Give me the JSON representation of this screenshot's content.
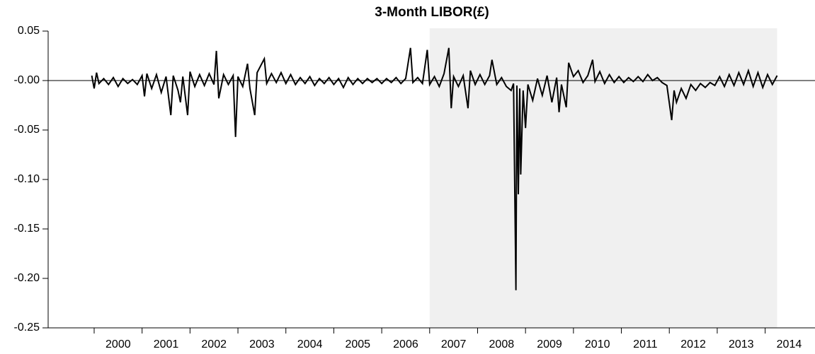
{
  "chart_data": {
    "type": "line",
    "title": "3-Month LIBOR(£)",
    "xlim": [
      1999.04,
      2015.04
    ],
    "ylim": [
      -0.25,
      0.05
    ],
    "xticks": [
      2000,
      2001,
      2002,
      2003,
      2004,
      2005,
      2006,
      2007,
      2008,
      2009,
      2010,
      2011,
      2012,
      2013,
      2014
    ],
    "yticks": [
      {
        "value": 0.05,
        "label": "0.05"
      },
      {
        "value": 0,
        "label": "-0.00"
      },
      {
        "value": -0.05,
        "label": "-0.05"
      },
      {
        "value": -0.1,
        "label": "-0.10"
      },
      {
        "value": -0.15,
        "label": "-0.15"
      },
      {
        "value": -0.2,
        "label": "-0.20"
      },
      {
        "value": -0.25,
        "label": "-0.25"
      }
    ],
    "shaded_range": [
      2007.0,
      2014.25
    ],
    "shade_color": "#f0f0f0",
    "series": [
      {
        "color": "#000000",
        "x": [
          1999.95,
          2000.0,
          2000.05,
          2000.1,
          2000.2,
          2000.3,
          2000.4,
          2000.5,
          2000.6,
          2000.7,
          2000.8,
          2000.9,
          2001.0,
          2001.05,
          2001.1,
          2001.2,
          2001.3,
          2001.4,
          2001.5,
          2001.6,
          2001.65,
          2001.75,
          2001.8,
          2001.85,
          2001.95,
          2002.0,
          2002.1,
          2002.2,
          2002.3,
          2002.4,
          2002.5,
          2002.55,
          2002.6,
          2002.7,
          2002.8,
          2002.9,
          2002.95,
          2003.0,
          2003.1,
          2003.2,
          2003.25,
          2003.35,
          2003.4,
          2003.55,
          2003.6,
          2003.7,
          2003.8,
          2003.9,
          2004.0,
          2004.1,
          2004.2,
          2004.3,
          2004.4,
          2004.5,
          2004.6,
          2004.7,
          2004.8,
          2004.9,
          2005.0,
          2005.1,
          2005.2,
          2005.3,
          2005.4,
          2005.5,
          2005.6,
          2005.7,
          2005.8,
          2005.9,
          2006.0,
          2006.1,
          2006.2,
          2006.3,
          2006.4,
          2006.5,
          2006.6,
          2006.65,
          2006.75,
          2006.85,
          2006.95,
          2007.0,
          2007.1,
          2007.2,
          2007.3,
          2007.4,
          2007.45,
          2007.5,
          2007.6,
          2007.7,
          2007.8,
          2007.85,
          2007.95,
          2008.05,
          2008.15,
          2008.25,
          2008.3,
          2008.4,
          2008.5,
          2008.6,
          2008.7,
          2008.75,
          2008.8,
          2008.82,
          2008.85,
          2008.88,
          2008.9,
          2008.95,
          2009.0,
          2009.05,
          2009.15,
          2009.25,
          2009.35,
          2009.45,
          2009.55,
          2009.65,
          2009.7,
          2009.75,
          2009.85,
          2009.9,
          2010.0,
          2010.1,
          2010.2,
          2010.3,
          2010.4,
          2010.45,
          2010.55,
          2010.65,
          2010.75,
          2010.85,
          2010.95,
          2011.05,
          2011.15,
          2011.25,
          2011.35,
          2011.45,
          2011.55,
          2011.65,
          2011.75,
          2011.85,
          2011.95,
          2012.05,
          2012.1,
          2012.15,
          2012.25,
          2012.35,
          2012.45,
          2012.55,
          2012.65,
          2012.75,
          2012.85,
          2012.95,
          2013.05,
          2013.15,
          2013.25,
          2013.35,
          2013.45,
          2013.55,
          2013.65,
          2013.75,
          2013.85,
          2013.95,
          2014.05,
          2014.15,
          2014.25
        ],
        "values": [
          0.005,
          -0.008,
          0.008,
          -0.003,
          0.002,
          -0.004,
          0.003,
          -0.006,
          0.002,
          -0.003,
          0.001,
          -0.004,
          0.005,
          -0.016,
          0.007,
          -0.008,
          0.006,
          -0.012,
          0.004,
          -0.035,
          0.005,
          -0.01,
          -0.022,
          0.004,
          -0.035,
          0.009,
          -0.006,
          0.006,
          -0.005,
          0.007,
          -0.004,
          0.03,
          -0.018,
          0.006,
          -0.004,
          0.005,
          -0.057,
          0.004,
          -0.006,
          0.017,
          -0.008,
          -0.035,
          0.008,
          0.022,
          -0.003,
          0.007,
          -0.002,
          0.008,
          -0.003,
          0.006,
          -0.004,
          0.003,
          -0.003,
          0.004,
          -0.005,
          0.002,
          -0.003,
          0.003,
          -0.004,
          0.002,
          -0.007,
          0.003,
          -0.004,
          0.002,
          -0.003,
          0.002,
          -0.002,
          0.002,
          -0.003,
          0.002,
          -0.002,
          0.003,
          -0.003,
          0.002,
          0.033,
          -0.002,
          0.003,
          -0.003,
          0.031,
          -0.004,
          0.004,
          -0.006,
          0.007,
          0.033,
          -0.028,
          0.004,
          -0.006,
          0.005,
          -0.028,
          0.01,
          -0.004,
          0.006,
          -0.004,
          0.005,
          0.021,
          -0.004,
          0.003,
          -0.006,
          -0.01,
          -0.003,
          -0.212,
          -0.005,
          -0.115,
          -0.008,
          -0.095,
          -0.01,
          -0.048,
          -0.004,
          -0.02,
          0.002,
          -0.015,
          0.005,
          -0.022,
          0.003,
          -0.032,
          -0.004,
          -0.027,
          0.018,
          0.004,
          0.01,
          -0.002,
          0.005,
          0.021,
          -0.001,
          0.009,
          -0.003,
          0.006,
          -0.002,
          0.004,
          -0.002,
          0.003,
          -0.001,
          0.004,
          -0.001,
          0.006,
          0,
          0.003,
          -0.002,
          -0.005,
          -0.04,
          -0.01,
          -0.022,
          -0.008,
          -0.018,
          -0.004,
          -0.01,
          -0.003,
          -0.007,
          -0.002,
          -0.005,
          0.004,
          -0.006,
          0.006,
          -0.005,
          0.008,
          -0.004,
          0.01,
          -0.006,
          0.008,
          -0.007,
          0.006,
          -0.004,
          0.005
        ]
      }
    ]
  }
}
